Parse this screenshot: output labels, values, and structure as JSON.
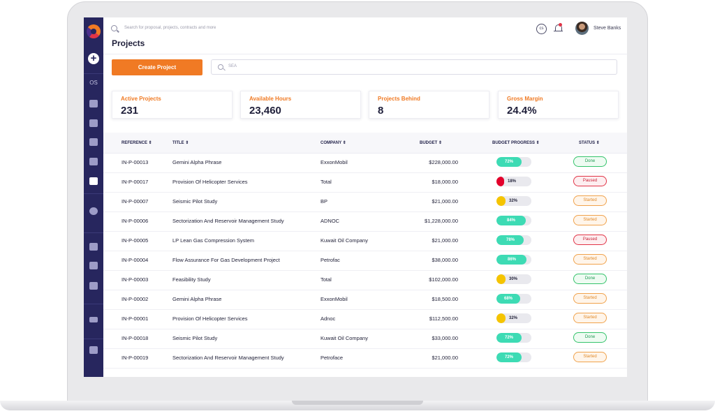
{
  "header": {
    "search_placeholder": "Search for proposal, projects, contracts and more",
    "page_title": "Projects",
    "user_name": "Steve Banks",
    "cs_icon_text": "cs"
  },
  "sidebar": {
    "add_label": "+",
    "os_label": "OS",
    "items": [
      "document-icon",
      "list-icon",
      "calendar-icon",
      "chart-icon",
      "invoice-icon",
      "search-user-icon",
      "team-icon",
      "building-icon",
      "heart-icon",
      "cash-icon",
      "folder-icon"
    ]
  },
  "actions": {
    "create_label": "Create Project",
    "search_placeholder": "SEA"
  },
  "stats": [
    {
      "label": "Active Projects",
      "value": "231"
    },
    {
      "label": "Available Hours",
      "value": "23,460"
    },
    {
      "label": "Projects Behind",
      "value": "8"
    },
    {
      "label": "Gross Margin",
      "value": "24.4%"
    }
  ],
  "table": {
    "columns": [
      "REFERENCE ⇕",
      "TITLE ⇕",
      "COMPANY ⇕",
      "BUDGET ⇕",
      "BUDGET PROGRESS ⇕",
      "STATUS ⇕"
    ],
    "rows": [
      {
        "ref": "IN-P-00013",
        "title": "Gemini Alpha Phrase",
        "company": "ExxonMobil",
        "budget": "$228,000.00",
        "progress": "72%",
        "status": "Done"
      },
      {
        "ref": "IN-P-00017",
        "title": "Provision Of Helicopter Services",
        "company": "Total",
        "budget": "$18,000.00",
        "progress": "18%",
        "status": "Paused"
      },
      {
        "ref": "IN-P-00007",
        "title": "Seismic Pilot Study",
        "company": "BP",
        "budget": "$21,000.00",
        "progress": "32%",
        "status": "Started"
      },
      {
        "ref": "IN-P-00006",
        "title": "Sectorization And Reservoir Management Study",
        "company": "ADNOC",
        "budget": "$1,228,000.00",
        "progress": "84%",
        "status": "Started"
      },
      {
        "ref": "IN-P-00005",
        "title": "LP Lean Gas Compression System",
        "company": "Kuwait Oil Company",
        "budget": "$21,000.00",
        "progress": "78%",
        "status": "Paused"
      },
      {
        "ref": "IN-P-00004",
        "title": "Flow Assurance For Gas Development Project",
        "company": "Petrofac",
        "budget": "$38,000.00",
        "progress": "86%",
        "status": "Started"
      },
      {
        "ref": "IN-P-00003",
        "title": "Feasibility Study",
        "company": "Total",
        "budget": "$102,000.00",
        "progress": "30%",
        "status": "Done"
      },
      {
        "ref": "IN-P-00002",
        "title": "Gemini Alpha Phrase",
        "company": "ExxonMobil",
        "budget": "$18,500.00",
        "progress": "68%",
        "status": "Started"
      },
      {
        "ref": "IN-P-00001",
        "title": "Provision Of Helicopter Services",
        "company": "Adnoc",
        "budget": "$112,500.00",
        "progress": "32%",
        "status": "Started"
      },
      {
        "ref": "IN-P-00018",
        "title": "Seismic Pilot Study",
        "company": "Kuwait Oil Company",
        "budget": "$33,000.00",
        "progress": "72%",
        "status": "Done"
      },
      {
        "ref": "IN-P-00019",
        "title": "Sectorization And Reservoir Management Study",
        "company": "Petroface",
        "budget": "$21,000.00",
        "progress": "72%",
        "status": "Started"
      }
    ]
  },
  "colors": {
    "sidebar": "#27265e",
    "accent": "#f07a24",
    "progress_high": "#3ddbb4",
    "progress_mid": "#f5c400",
    "progress_low": "#e3002b"
  }
}
